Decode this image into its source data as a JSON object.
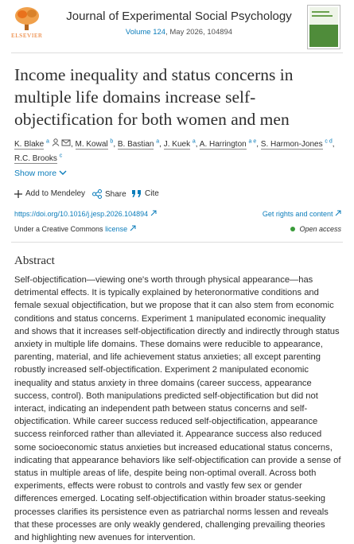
{
  "header": {
    "publisher": "ELSEVIER",
    "journal": "Journal of Experimental Social Psychology",
    "volume": "Volume 124",
    "issue": ", May 2026, 104894"
  },
  "article": {
    "title": "Income inequality and status concerns in multiple life domains increase self-objectification for both women and men",
    "author_separator": ",",
    "authors": [
      {
        "name": "K. Blake",
        "affiliations": "a"
      },
      {
        "name": "M. Kowal",
        "affiliations": "b"
      },
      {
        "name": "B. Bastian",
        "affiliations": "a"
      },
      {
        "name": "J. Kuek",
        "affiliations": "a"
      },
      {
        "name": "A. Harrington",
        "affiliations": "a e"
      },
      {
        "name": "S. Harmon-Jones",
        "affiliations": "c d"
      },
      {
        "name": "R.C. Brooks",
        "affiliations": "c"
      }
    ],
    "show_more": "Show more",
    "actions": [
      "Add to Mendeley",
      "Share",
      "Cite"
    ],
    "doi": "https://doi.org/10.1016/j.jesp.2026.104894",
    "rights": "Get rights and content",
    "license_prefix": "Under a Creative Commons",
    "license_link": "license",
    "access": "Open access"
  },
  "abstract": {
    "heading": "Abstract",
    "text": "Self-objectification—viewing one's worth through physical appearance—has detrimental effects. It is typically explained by heteronormative conditions and female sexual objectification, but we propose that it can also stem from economic conditions and status concerns. Experiment 1 manipulated economic inequality and shows that it increases self-objectification directly and indirectly through status anxiety in multiple life domains. These domains were reducible to appearance, parenting, material, and life achievement status anxieties; all except parenting robustly increased self-objectification. Experiment 2 manipulated economic inequality and status anxiety in three domains (career success, appearance success, control). Both manipulations predicted self-objectification but did not interact, indicating an independent path between status concerns and self-objectification. While career success reduced self-objectification, appearance success reinforced rather than alleviated it. Appearance success also reduced some socioeconomic status anxieties but increased educational status concerns, indicating that appearance behaviors like self-objectification can provide a sense of status in multiple areas of life, despite being non-optimal overall. Across both experiments, effects were robust to controls and vastly few sex or gender differences emerged. Locating self-objectification within broader status-seeking processes clarifies its persistence even as patriarchal norms lessen and reveals that these processes are only weakly gendered, challenging prevailing theories and highlighting new avenues for intervention."
  }
}
